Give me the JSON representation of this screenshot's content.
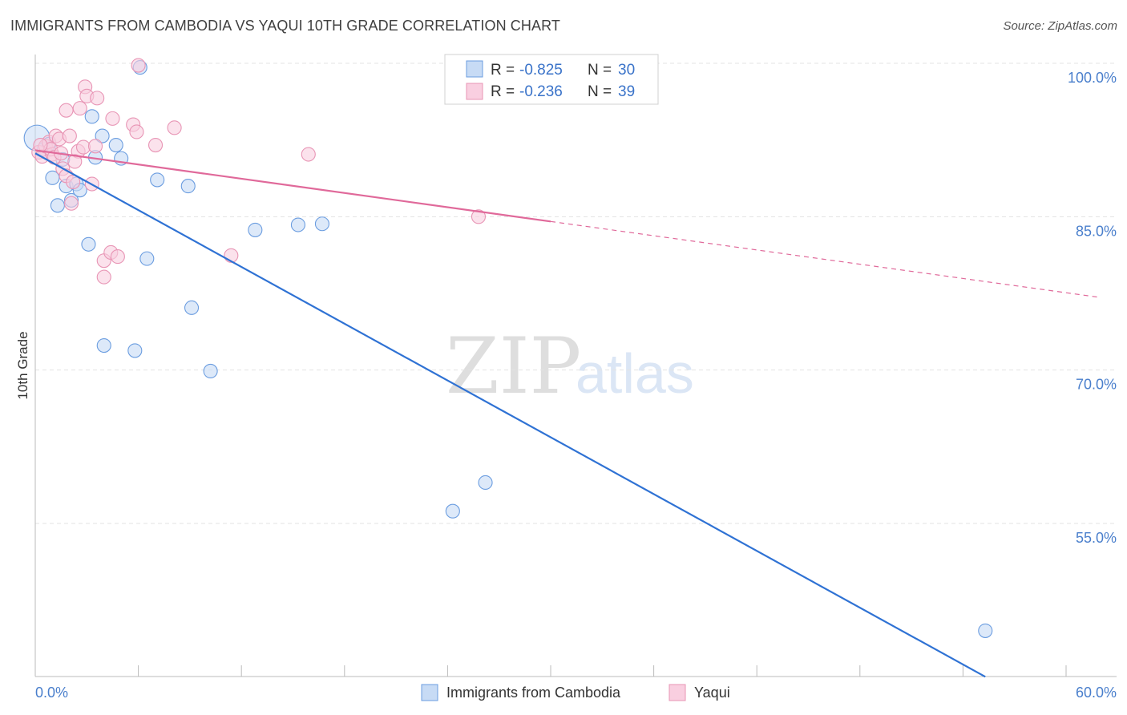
{
  "header": {
    "title": "IMMIGRANTS FROM CAMBODIA VS YAQUI 10TH GRADE CORRELATION CHART",
    "source": "Source: ZipAtlas.com"
  },
  "watermark": {
    "zip": "ZIP",
    "atlas": "atlas"
  },
  "chart_data": {
    "type": "scatter",
    "title": "IMMIGRANTS FROM CAMBODIA VS YAQUI 10TH GRADE CORRELATION CHART",
    "xlabel": "",
    "ylabel": "10th Grade",
    "xlim": [
      0,
      60
    ],
    "ylim": [
      40,
      101.5
    ],
    "x_tick_labels": {
      "left": "0.0%",
      "right": "60.0%"
    },
    "y_ticks": [
      100,
      85,
      70,
      55
    ],
    "y_tick_labels": [
      "100.0%",
      "85.0%",
      "70.0%",
      "55.0%"
    ],
    "legend": {
      "position": "top-center",
      "entries": [
        {
          "r_label": "R =",
          "r_value": "-0.825",
          "n_label": "N =",
          "n_value": "30"
        },
        {
          "r_label": "R =",
          "r_value": "-0.236",
          "n_label": "N =",
          "n_value": "39"
        }
      ]
    },
    "series": [
      {
        "name": "Immigrants from Cambodia",
        "color": "#6b9de0",
        "fill": "#c7dbf5",
        "line_color": "#2f72d4",
        "trend": {
          "x0": 0,
          "y0": 91.2,
          "x1": 55.3,
          "y1": 40,
          "solid_until": 55.3
        },
        "points": [
          [
            0.1,
            92.7
          ],
          [
            0.5,
            91.6
          ],
          [
            0.8,
            92.1
          ],
          [
            1.0,
            88.8
          ],
          [
            1.3,
            86.1
          ],
          [
            1.6,
            90.6
          ],
          [
            1.8,
            88.0
          ],
          [
            2.1,
            86.6
          ],
          [
            2.4,
            88.2
          ],
          [
            2.6,
            87.6
          ],
          [
            3.1,
            82.3
          ],
          [
            3.3,
            94.8
          ],
          [
            3.5,
            90.8
          ],
          [
            3.9,
            92.9
          ],
          [
            4.0,
            72.4
          ],
          [
            4.7,
            92.0
          ],
          [
            5.0,
            90.7
          ],
          [
            5.8,
            71.9
          ],
          [
            6.1,
            99.6
          ],
          [
            6.5,
            80.9
          ],
          [
            7.1,
            88.6
          ],
          [
            8.9,
            88.0
          ],
          [
            9.1,
            76.1
          ],
          [
            10.2,
            69.9
          ],
          [
            12.8,
            83.7
          ],
          [
            15.3,
            84.2
          ],
          [
            16.7,
            84.3
          ],
          [
            24.3,
            56.2
          ],
          [
            26.2,
            59.0
          ],
          [
            55.3,
            44.5
          ]
        ]
      },
      {
        "name": "Yaqui",
        "color": "#e895b5",
        "fill": "#f9cfe0",
        "line_color": "#e0699a",
        "trend": {
          "x0": 0,
          "y0": 91.5,
          "x1": 62.0,
          "y1": 77.1,
          "solid_until": 30.0
        },
        "points": [
          [
            0.2,
            91.3
          ],
          [
            0.4,
            90.9
          ],
          [
            0.6,
            91.9
          ],
          [
            0.8,
            92.3
          ],
          [
            1.0,
            91.1
          ],
          [
            1.2,
            92.9
          ],
          [
            1.4,
            92.6
          ],
          [
            1.6,
            89.7
          ],
          [
            1.8,
            95.4
          ],
          [
            1.8,
            89.0
          ],
          [
            2.0,
            92.9
          ],
          [
            2.1,
            86.3
          ],
          [
            2.2,
            88.4
          ],
          [
            2.5,
            91.4
          ],
          [
            2.6,
            95.6
          ],
          [
            2.8,
            91.8
          ],
          [
            2.9,
            97.7
          ],
          [
            3.0,
            96.8
          ],
          [
            3.3,
            88.2
          ],
          [
            3.5,
            91.9
          ],
          [
            3.6,
            96.6
          ],
          [
            4.0,
            80.7
          ],
          [
            4.0,
            79.1
          ],
          [
            4.4,
            81.5
          ],
          [
            4.5,
            94.6
          ],
          [
            4.8,
            81.1
          ],
          [
            5.7,
            94.0
          ],
          [
            5.9,
            93.3
          ],
          [
            6.0,
            99.8
          ],
          [
            7.0,
            92.0
          ],
          [
            8.1,
            93.7
          ],
          [
            11.4,
            81.2
          ],
          [
            15.9,
            91.1
          ],
          [
            25.8,
            85.0
          ],
          [
            0.9,
            91.6
          ],
          [
            1.1,
            90.8
          ],
          [
            0.3,
            92.0
          ],
          [
            1.5,
            91.2
          ],
          [
            2.3,
            90.4
          ]
        ]
      }
    ]
  }
}
